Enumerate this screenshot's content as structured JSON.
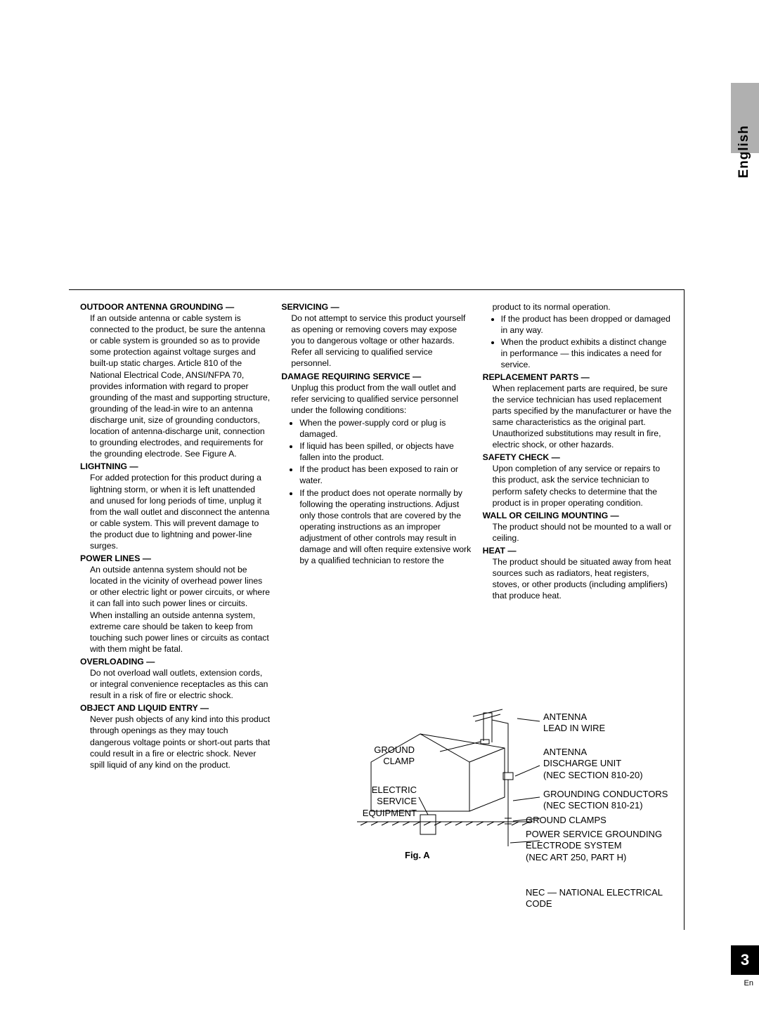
{
  "side": {
    "label": "English"
  },
  "col1": {
    "outdoor": {
      "head": "OUTDOOR ANTENNA GROUNDING —",
      "body": "If an outside antenna or cable system is connected to the product, be sure the antenna or cable system is grounded so as to provide some protection against voltage surges and built-up static charges. Article 810 of the National Electrical Code, ANSI/NFPA 70, provides information with regard to proper grounding of the mast and supporting structure, grounding of the lead-in wire to an antenna discharge unit, size of grounding conductors, location of antenna-discharge unit, connection to grounding electrodes, and requirements for the grounding electrode. See Figure A."
    },
    "lightning": {
      "head": "LIGHTNING —",
      "body": "For added protection for this product during a lightning storm, or when it is left unattended and unused for long periods of time, unplug it from the wall outlet and disconnect the antenna or cable system. This will prevent damage to the product due to lightning and power-line surges."
    },
    "power": {
      "head": "POWER LINES —",
      "body": "An outside antenna system should not be located in the vicinity of overhead power lines or other electric light or power circuits, or where it can fall into such power lines or circuits. When installing an outside antenna system, extreme care should be taken to keep from touching such power lines or circuits as contact with them might be fatal."
    },
    "overload": {
      "head": "OVERLOADING —",
      "body": "Do not overload wall outlets, extension cords, or integral convenience receptacles as this can result in a risk of fire or electric shock."
    },
    "object": {
      "head": "OBJECT AND LIQUID ENTRY —",
      "body": "Never push objects of any kind into this product through openings as they may touch dangerous voltage points or short-out parts that could result in a fire or electric shock. Never spill liquid of any kind on the product."
    }
  },
  "col2": {
    "servicing": {
      "head": "SERVICING —",
      "body": "Do not attempt to service this product yourself as opening or removing covers may expose you to dangerous voltage or other hazards. Refer all servicing to qualified service personnel."
    },
    "damage": {
      "head": "DAMAGE REQUIRING SERVICE —",
      "body": "Unplug this product from the wall outlet and refer servicing to qualified service personnel under the following conditions:",
      "b1": "When the power-supply cord or plug is damaged.",
      "b2": "If liquid has been spilled, or objects have fallen into the product.",
      "b3": "If the product has been exposed to rain or water.",
      "b4": "If the product does not operate normally by following the operating instructions. Adjust only those controls that are covered by the operating instructions as an improper adjustment of other controls may result in damage and will often require extensive work by a qualified technician to restore the"
    }
  },
  "col3": {
    "cont": "product to its normal operation.",
    "b1": "If the product has been dropped or damaged in any way.",
    "b2": "When the product exhibits a distinct change in performance — this indicates a need for service.",
    "replace": {
      "head": "REPLACEMENT PARTS —",
      "body": "When replacement parts are required, be sure the service technician has used replacement parts specified by the manufacturer or have the same characteristics as the original part. Unauthorized substitutions may result in fire, electric shock, or other hazards."
    },
    "safety": {
      "head": "SAFETY CHECK —",
      "body": "Upon completion of any service or repairs to this product, ask the service technician to perform safety checks to determine that the product is in proper operating condition."
    },
    "wall": {
      "head": "WALL OR CEILING MOUNTING —",
      "body": "The product should not be mounted to a wall or ceiling."
    },
    "heat": {
      "head": "HEAT —",
      "body": "The product should be situated away from heat sources such as radiators, heat registers, stoves, or other products (including amplifiers) that produce heat."
    }
  },
  "diagram": {
    "ground_clamp": "GROUND\nCLAMP",
    "electric": "ELECTRIC\nSERVICE\nEQUIPMENT",
    "fig": "Fig. A",
    "antenna_lead": "ANTENNA\nLEAD IN WIRE",
    "antenna_discharge": "ANTENNA\nDISCHARGE UNIT\n(NEC SECTION 810-20)",
    "grounding_cond": "GROUNDING CONDUCTORS\n(NEC SECTION 810-21)",
    "ground_clamps": "GROUND CLAMPS",
    "power_service": "POWER SERVICE GROUNDING\nELECTRODE SYSTEM\n(NEC ART 250, PART H)",
    "nec": "NEC — NATIONAL ELECTRICAL CODE"
  },
  "footer": {
    "page": "3",
    "lang": "En"
  }
}
